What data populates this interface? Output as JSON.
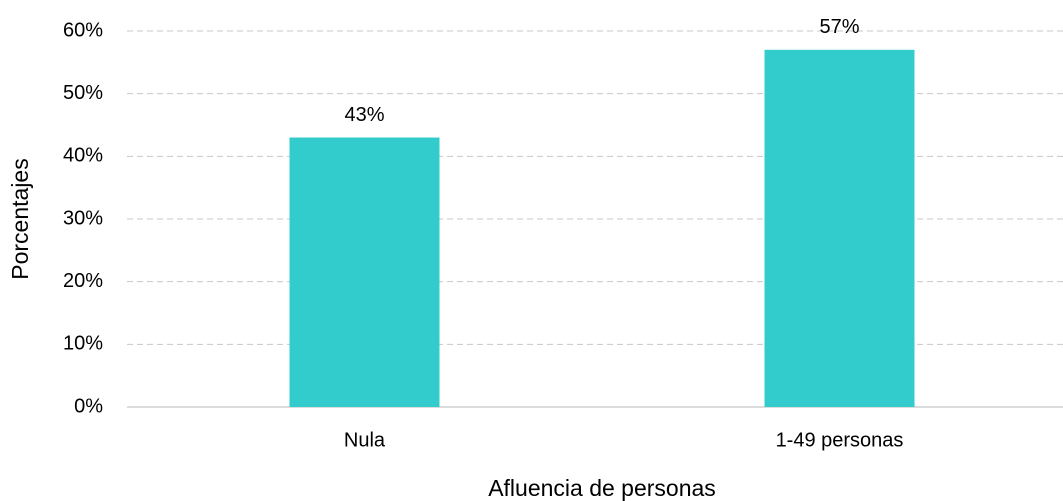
{
  "chart_data": {
    "type": "bar",
    "x_label": "Afluencia de personas",
    "y_label": "Porcentajes",
    "categories": [
      "Nula",
      "1-49 personas"
    ],
    "values": [
      43,
      57
    ],
    "value_labels": [
      "43%",
      "57%"
    ],
    "color": "#33cccc",
    "ylim": [
      0,
      60
    ],
    "yticks": [
      {
        "value": 0,
        "label": "0%"
      },
      {
        "value": 10,
        "label": "10%"
      },
      {
        "value": 20,
        "label": "20%"
      },
      {
        "value": 30,
        "label": "30%"
      },
      {
        "value": 40,
        "label": "40%"
      },
      {
        "value": 50,
        "label": "50%"
      },
      {
        "value": 60,
        "label": "60%"
      }
    ],
    "grid": true
  }
}
